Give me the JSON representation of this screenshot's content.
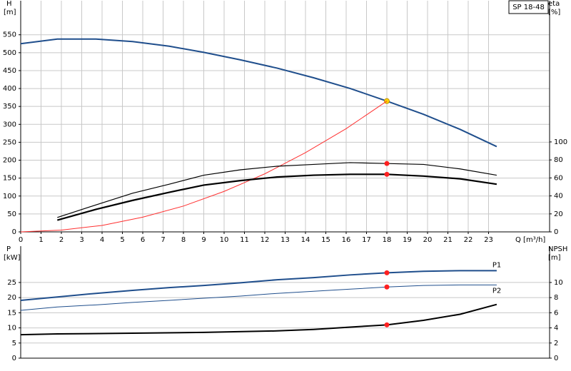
{
  "chart_data": [
    {
      "type": "line",
      "title": "SP 18-48",
      "y_label": "H",
      "y_unit": "[m]",
      "y2_label": "eta",
      "y2_unit": "[%]",
      "x_label": "Q [m³/h]",
      "xlim": [
        0,
        26
      ],
      "xticks": [
        0,
        1,
        2,
        3,
        4,
        5,
        6,
        7,
        8,
        9,
        10,
        11,
        12,
        13,
        14,
        15,
        16,
        17,
        18,
        19,
        20,
        21,
        22,
        23
      ],
      "ylim": [
        0,
        645
      ],
      "yticks": [
        0,
        50,
        100,
        150,
        200,
        250,
        300,
        350,
        400,
        450,
        500,
        550
      ],
      "y2lim": [
        0,
        257
      ],
      "y2ticks": [
        0,
        20,
        40,
        60,
        80,
        100
      ],
      "grid": true,
      "series": [
        {
          "color": "#1f4e8c",
          "width": 2,
          "x": [
            0,
            1.8,
            3.7,
            5.5,
            7.3,
            9,
            10.8,
            12.6,
            14.4,
            16.2,
            18,
            19.8,
            21.6,
            23.4
          ],
          "values": [
            525,
            538,
            538,
            531,
            518,
            501,
            480,
            457,
            430,
            400,
            365,
            328,
            286,
            238
          ],
          "operating_point": {
            "x": 18,
            "value": 365
          },
          "marker_color": "#ffd400"
        },
        {
          "color": "#ff3030",
          "width": 1,
          "x": [
            0,
            2,
            4,
            6,
            8,
            10,
            12,
            14,
            16,
            18
          ],
          "values": [
            0,
            5,
            18,
            41,
            72,
            113,
            162,
            221,
            288,
            365
          ]
        },
        {
          "color": "#000000",
          "width": 1.2,
          "axis": "y2",
          "x": [
            1.8,
            3.7,
            5.5,
            7.3,
            9,
            10.8,
            12.6,
            14.4,
            16.2,
            18,
            19.8,
            21.6,
            23.4
          ],
          "values": [
            16,
            30,
            43,
            53,
            63,
            69,
            73,
            75,
            77,
            76,
            75,
            70,
            63
          ],
          "operating_point": {
            "x": 18,
            "value": 76
          },
          "marker_color": "#ff2020"
        },
        {
          "color": "#000000",
          "width": 2.2,
          "axis": "y2",
          "x": [
            1.8,
            3.7,
            5.5,
            7.3,
            9,
            10.8,
            12.6,
            14.4,
            16.2,
            18,
            19.8,
            21.6,
            23.4
          ],
          "values": [
            13,
            25,
            35,
            44,
            52,
            57,
            61,
            63,
            64,
            64,
            62,
            59,
            53
          ],
          "operating_point": {
            "x": 18,
            "value": 64
          },
          "marker_color": "#ff2020"
        }
      ]
    },
    {
      "type": "line",
      "y_label": "P",
      "y_unit": "[kW]",
      "y2_label": "NPSH",
      "y2_unit": "[m]",
      "xlim": [
        0,
        26
      ],
      "ylim": [
        0,
        37
      ],
      "yticks": [
        0,
        5,
        10,
        15,
        20,
        25
      ],
      "y2lim": [
        0,
        14.8
      ],
      "y2ticks": [
        0,
        2,
        4,
        6,
        8,
        10
      ],
      "grid": true,
      "series": [
        {
          "name": "P1",
          "color": "#1f4e8c",
          "width": 2,
          "x": [
            0,
            1.8,
            3.7,
            5.5,
            7.3,
            9,
            10.8,
            12.6,
            14.4,
            16.2,
            18,
            19.8,
            21.6,
            23.4
          ],
          "values": [
            19.1,
            20.2,
            21.4,
            22.4,
            23.3,
            24,
            24.9,
            25.9,
            26.6,
            27.5,
            28.2,
            28.7,
            28.9,
            28.9
          ],
          "operating_point": {
            "x": 18,
            "value": 28.2
          },
          "marker_color": "#ff2020"
        },
        {
          "name": "P2",
          "color": "#1f4e8c",
          "width": 1,
          "x": [
            0,
            1.8,
            3.7,
            5.5,
            7.3,
            9,
            10.8,
            12.6,
            14.4,
            16.2,
            18,
            19.8,
            21.6,
            23.4
          ],
          "values": [
            15.8,
            16.9,
            17.6,
            18.4,
            19.1,
            19.8,
            20.5,
            21.4,
            22.1,
            22.8,
            23.5,
            24,
            24.2,
            24.2
          ],
          "operating_point": {
            "x": 18,
            "value": 23.5
          },
          "marker_color": "#ff2020"
        },
        {
          "color": "#000000",
          "width": 2,
          "axis": "y2",
          "x": [
            0,
            1.8,
            5.5,
            9,
            12.6,
            14.4,
            16.2,
            18,
            19.8,
            21.6,
            23.4
          ],
          "values": [
            3.1,
            3.2,
            3.3,
            3.4,
            3.6,
            3.8,
            4.1,
            4.4,
            5,
            5.8,
            7.1
          ],
          "operating_point": {
            "x": 18,
            "value": 4.4
          },
          "marker_color": "#ff2020"
        }
      ]
    }
  ]
}
